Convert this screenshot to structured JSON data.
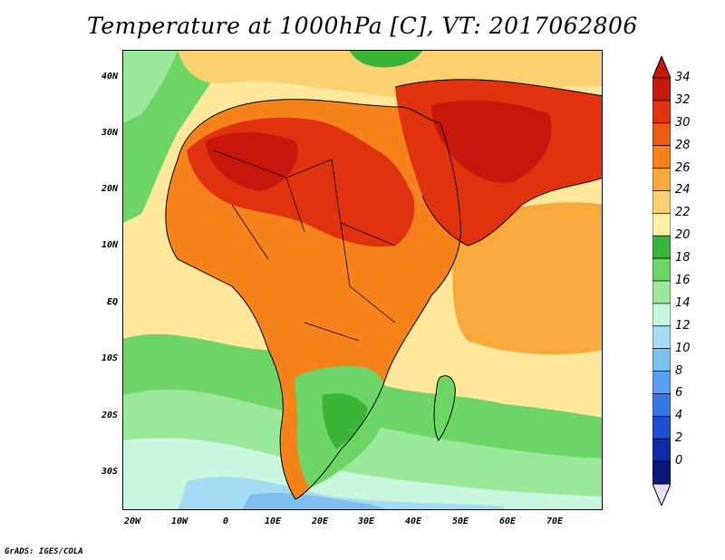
{
  "title": "Temperature at 1000hPa [C], VT: 2017062806",
  "credit": "GrADS: IGES/COLA",
  "lat_ticks": [
    "40N",
    "30N",
    "20N",
    "10N",
    "EQ",
    "10S",
    "20S",
    "30S"
  ],
  "lon_ticks": [
    "20W",
    "10W",
    "0",
    "10E",
    "20E",
    "30E",
    "40E",
    "50E",
    "60E",
    "70E"
  ],
  "colorbar": {
    "labels": [
      "34",
      "32",
      "30",
      "28",
      "26",
      "24",
      "22",
      "20",
      "18",
      "16",
      "14",
      "12",
      "10",
      "8",
      "6",
      "4",
      "2",
      "0"
    ],
    "colors": [
      "#c8170c",
      "#e0320f",
      "#ee5a13",
      "#f5821b",
      "#f8a93c",
      "#fbd070",
      "#fdf0a6",
      "#3ab53a",
      "#6dd466",
      "#9ae99a",
      "#c9f6de",
      "#a4dcf4",
      "#7cc0f0",
      "#5a9ff0",
      "#3a77e6",
      "#1f4fd0",
      "#0f2ba8",
      "#0a1a78"
    ],
    "top_arrow": "#c8170c",
    "bottom_arrow": "#e6dcf7"
  }
}
